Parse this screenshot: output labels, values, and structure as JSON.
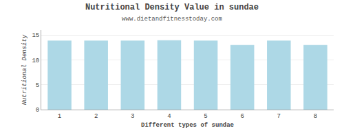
{
  "chart_data": {
    "type": "bar",
    "title": "Nutritional Density Value in sundae",
    "subtitle": "www.dietandfitnesstoday.com",
    "xlabel": "Different types of sundae",
    "ylabel": "Nutritional Density",
    "categories": [
      1,
      2,
      3,
      4,
      5,
      6,
      7,
      8
    ],
    "values": [
      13.9,
      13.9,
      13.9,
      13.95,
      13.9,
      13.0,
      13.9,
      13.0
    ],
    "color": "#add8e6",
    "ylim": [
      0,
      16
    ],
    "yticks": [
      0,
      5,
      10,
      15
    ],
    "grid": true
  }
}
